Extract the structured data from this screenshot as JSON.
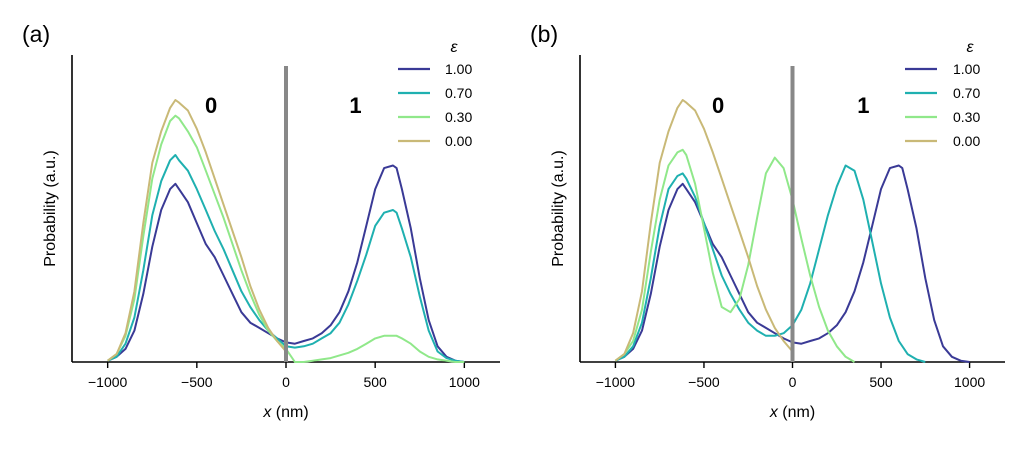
{
  "chart_data": [
    {
      "panel": "(a)",
      "type": "line",
      "xlabel_var": "x",
      "xlabel_unit": "(nm)",
      "ylabel": "Probability (a.u.)",
      "xlim": [
        -1200,
        1200
      ],
      "ylim": [
        0,
        1.0
      ],
      "xticks": [
        -1000,
        -500,
        0,
        500,
        1000
      ],
      "xtick_labels": [
        "−1000",
        "−500",
        "0",
        "500",
        "1000"
      ],
      "divider_x": 0,
      "region_labels": [
        {
          "text": "0",
          "x": -420
        },
        {
          "text": "1",
          "x": 390
        }
      ],
      "legend_title": "ε",
      "series": [
        {
          "name": "1.00",
          "color": "#3a3a96",
          "x": [
            -1000,
            -950,
            -900,
            -850,
            -800,
            -750,
            -700,
            -650,
            -620,
            -600,
            -550,
            -500,
            -450,
            -400,
            -350,
            -300,
            -250,
            -200,
            -150,
            -100,
            -50,
            0,
            50,
            100,
            150,
            200,
            250,
            300,
            350,
            400,
            450,
            500,
            550,
            600,
            620,
            650,
            700,
            750,
            800,
            850,
            900,
            950,
            1000
          ],
          "y": [
            0.005,
            0.02,
            0.05,
            0.12,
            0.26,
            0.44,
            0.58,
            0.66,
            0.68,
            0.66,
            0.61,
            0.53,
            0.45,
            0.4,
            0.33,
            0.26,
            0.19,
            0.15,
            0.13,
            0.11,
            0.09,
            0.075,
            0.07,
            0.08,
            0.09,
            0.11,
            0.14,
            0.19,
            0.27,
            0.38,
            0.52,
            0.66,
            0.74,
            0.75,
            0.74,
            0.66,
            0.51,
            0.32,
            0.16,
            0.06,
            0.02,
            0.005,
            0.0
          ]
        },
        {
          "name": "0.70",
          "color": "#1fb0b0",
          "x": [
            -1000,
            -950,
            -900,
            -850,
            -800,
            -750,
            -700,
            -650,
            -620,
            -600,
            -550,
            -500,
            -450,
            -400,
            -350,
            -300,
            -250,
            -200,
            -150,
            -100,
            -50,
            0,
            50,
            100,
            150,
            200,
            250,
            300,
            350,
            400,
            450,
            500,
            550,
            600,
            620,
            650,
            700,
            750,
            800,
            850,
            900,
            950,
            1000
          ],
          "y": [
            0.005,
            0.02,
            0.07,
            0.17,
            0.35,
            0.56,
            0.69,
            0.77,
            0.79,
            0.77,
            0.73,
            0.66,
            0.58,
            0.5,
            0.43,
            0.35,
            0.27,
            0.21,
            0.16,
            0.12,
            0.09,
            0.06,
            0.055,
            0.06,
            0.07,
            0.09,
            0.11,
            0.15,
            0.22,
            0.31,
            0.41,
            0.52,
            0.57,
            0.58,
            0.57,
            0.51,
            0.4,
            0.25,
            0.12,
            0.04,
            0.015,
            0.005,
            0.0
          ]
        },
        {
          "name": "0.30",
          "color": "#90e88a",
          "x": [
            -1000,
            -950,
            -900,
            -850,
            -800,
            -750,
            -700,
            -650,
            -620,
            -600,
            -550,
            -500,
            -450,
            -400,
            -350,
            -300,
            -250,
            -200,
            -150,
            -100,
            -50,
            0,
            50,
            100,
            150,
            200,
            250,
            300,
            350,
            400,
            450,
            500,
            550,
            600,
            620,
            650,
            700,
            750,
            800,
            850,
            900,
            950,
            1000
          ],
          "y": [
            0.005,
            0.03,
            0.1,
            0.24,
            0.48,
            0.7,
            0.83,
            0.92,
            0.94,
            0.93,
            0.88,
            0.82,
            0.73,
            0.64,
            0.55,
            0.45,
            0.35,
            0.26,
            0.18,
            0.12,
            0.08,
            0.05,
            0.0,
            0.0,
            0.005,
            0.01,
            0.015,
            0.025,
            0.035,
            0.05,
            0.07,
            0.09,
            0.1,
            0.1,
            0.1,
            0.09,
            0.07,
            0.04,
            0.02,
            0.01,
            0.005,
            0.0,
            0.0
          ]
        },
        {
          "name": "0.00",
          "color": "#c9b977",
          "x": [
            -1000,
            -950,
            -900,
            -850,
            -800,
            -750,
            -700,
            -650,
            -620,
            -600,
            -550,
            -500,
            -450,
            -400,
            -350,
            -300,
            -250,
            -200,
            -150,
            -100,
            -50,
            0
          ],
          "y": [
            0.005,
            0.03,
            0.11,
            0.27,
            0.53,
            0.76,
            0.88,
            0.97,
            1.0,
            0.99,
            0.96,
            0.89,
            0.8,
            0.7,
            0.6,
            0.5,
            0.4,
            0.29,
            0.2,
            0.13,
            0.08,
            0.04
          ]
        }
      ]
    },
    {
      "panel": "(b)",
      "type": "line",
      "xlabel_var": "x",
      "xlabel_unit": "(nm)",
      "ylabel": "Probability (a.u.)",
      "xlim": [
        -1200,
        1200
      ],
      "ylim": [
        0,
        1.0
      ],
      "xticks": [
        -1000,
        -500,
        0,
        500,
        1000
      ],
      "xtick_labels": [
        "−1000",
        "−500",
        "0",
        "500",
        "1000"
      ],
      "divider_x": 0,
      "region_labels": [
        {
          "text": "0",
          "x": -420
        },
        {
          "text": "1",
          "x": 400
        }
      ],
      "legend_title": "ε",
      "series": [
        {
          "name": "1.00",
          "color": "#3a3a96",
          "x": [
            -1000,
            -950,
            -900,
            -850,
            -800,
            -750,
            -700,
            -650,
            -620,
            -600,
            -550,
            -500,
            -450,
            -400,
            -350,
            -300,
            -250,
            -200,
            -150,
            -100,
            -50,
            0,
            50,
            100,
            150,
            200,
            250,
            300,
            350,
            400,
            450,
            500,
            550,
            600,
            620,
            650,
            700,
            750,
            800,
            850,
            900,
            950,
            1000
          ],
          "y": [
            0.005,
            0.02,
            0.05,
            0.12,
            0.26,
            0.44,
            0.58,
            0.66,
            0.68,
            0.66,
            0.61,
            0.53,
            0.45,
            0.4,
            0.33,
            0.26,
            0.19,
            0.15,
            0.13,
            0.11,
            0.09,
            0.075,
            0.07,
            0.08,
            0.09,
            0.11,
            0.14,
            0.19,
            0.27,
            0.38,
            0.52,
            0.66,
            0.74,
            0.75,
            0.74,
            0.66,
            0.51,
            0.32,
            0.16,
            0.06,
            0.02,
            0.005,
            0.0
          ]
        },
        {
          "name": "0.70",
          "color": "#1fb0b0",
          "x": [
            -1000,
            -950,
            -900,
            -850,
            -800,
            -750,
            -700,
            -650,
            -620,
            -600,
            -550,
            -500,
            -450,
            -400,
            -350,
            -300,
            -250,
            -200,
            -150,
            -100,
            -50,
            0,
            50,
            100,
            150,
            200,
            250,
            300,
            350,
            400,
            450,
            500,
            550,
            600,
            650,
            700,
            750
          ],
          "y": [
            0.005,
            0.02,
            0.06,
            0.15,
            0.32,
            0.52,
            0.66,
            0.71,
            0.72,
            0.7,
            0.63,
            0.53,
            0.43,
            0.33,
            0.26,
            0.2,
            0.15,
            0.12,
            0.1,
            0.1,
            0.11,
            0.14,
            0.2,
            0.3,
            0.43,
            0.56,
            0.67,
            0.75,
            0.73,
            0.62,
            0.46,
            0.3,
            0.17,
            0.08,
            0.03,
            0.01,
            0.0
          ]
        },
        {
          "name": "0.30",
          "color": "#90e88a",
          "x": [
            -1000,
            -950,
            -900,
            -850,
            -800,
            -750,
            -700,
            -650,
            -620,
            -600,
            -550,
            -500,
            -450,
            -400,
            -350,
            -300,
            -250,
            -200,
            -150,
            -100,
            -50,
            0,
            50,
            100,
            150,
            200,
            250,
            300,
            350
          ],
          "y": [
            0.005,
            0.03,
            0.08,
            0.2,
            0.42,
            0.62,
            0.75,
            0.8,
            0.81,
            0.79,
            0.68,
            0.51,
            0.34,
            0.21,
            0.19,
            0.24,
            0.37,
            0.55,
            0.72,
            0.78,
            0.74,
            0.62,
            0.47,
            0.33,
            0.21,
            0.12,
            0.06,
            0.02,
            0.0
          ]
        },
        {
          "name": "0.00",
          "color": "#c9b977",
          "x": [
            -1000,
            -950,
            -900,
            -850,
            -800,
            -750,
            -700,
            -650,
            -620,
            -600,
            -550,
            -500,
            -450,
            -400,
            -350,
            -300,
            -250,
            -200,
            -150,
            -100,
            -50,
            0
          ],
          "y": [
            0.005,
            0.03,
            0.11,
            0.27,
            0.53,
            0.76,
            0.88,
            0.97,
            1.0,
            0.99,
            0.96,
            0.89,
            0.8,
            0.7,
            0.6,
            0.5,
            0.4,
            0.29,
            0.2,
            0.13,
            0.08,
            0.04
          ]
        }
      ]
    }
  ]
}
